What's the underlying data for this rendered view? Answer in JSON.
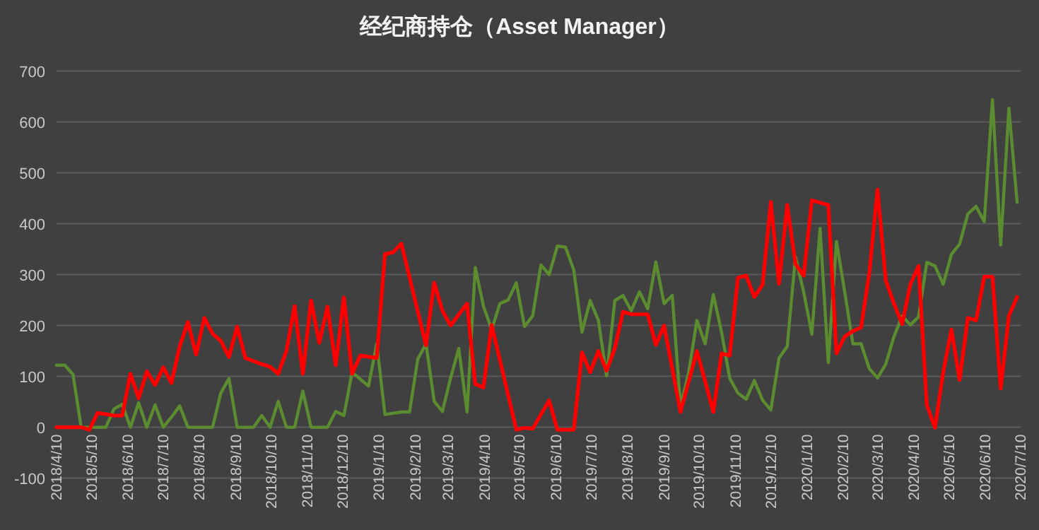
{
  "chart_data": {
    "type": "line",
    "title": "经纪商持仓（Asset Manager）",
    "xlim": [
      "2018-04-10",
      "2020-07-10"
    ],
    "ylim": [
      -100,
      700
    ],
    "yticks": [
      -100,
      0,
      100,
      200,
      300,
      400,
      500,
      600,
      700
    ],
    "xticks": [
      {
        "value": "2018-04-10",
        "label": "2018/4/10"
      },
      {
        "value": "2018-05-10",
        "label": "2018/5/10"
      },
      {
        "value": "2018-06-10",
        "label": "2018/6/10"
      },
      {
        "value": "2018-07-10",
        "label": "2018/7/10"
      },
      {
        "value": "2018-08-10",
        "label": "2018/8/10"
      },
      {
        "value": "2018-09-10",
        "label": "2018/9/10"
      },
      {
        "value": "2018-10-10",
        "label": "2018/10/10"
      },
      {
        "value": "2018-11-10",
        "label": "2018/11/10"
      },
      {
        "value": "2018-12-10",
        "label": "2018/12/10"
      },
      {
        "value": "2019-01-10",
        "label": "2019/1/10"
      },
      {
        "value": "2019-02-10",
        "label": "2019/2/10"
      },
      {
        "value": "2019-03-10",
        "label": "2019/3/10"
      },
      {
        "value": "2019-04-10",
        "label": "2019/4/10"
      },
      {
        "value": "2019-05-10",
        "label": "2019/5/10"
      },
      {
        "value": "2019-06-10",
        "label": "2019/6/10"
      },
      {
        "value": "2019-07-10",
        "label": "2019/7/10"
      },
      {
        "value": "2019-08-10",
        "label": "2019/8/10"
      },
      {
        "value": "2019-09-10",
        "label": "2019/9/10"
      },
      {
        "value": "2019-10-10",
        "label": "2019/10/10"
      },
      {
        "value": "2019-11-10",
        "label": "2019/11/10"
      },
      {
        "value": "2019-12-10",
        "label": "2019/12/10"
      },
      {
        "value": "2020-01-10",
        "label": "2020/1/10"
      },
      {
        "value": "2020-02-10",
        "label": "2020/2/10"
      },
      {
        "value": "2020-03-10",
        "label": "2020/3/10"
      },
      {
        "value": "2020-04-10",
        "label": "2020/4/10"
      },
      {
        "value": "2020-05-10",
        "label": "2020/5/10"
      },
      {
        "value": "2020-06-10",
        "label": "2020/6/10"
      },
      {
        "value": "2020-07-10",
        "label": "2020/7/10"
      }
    ],
    "grid": "y",
    "series": [
      {
        "color": "#5b8c2f",
        "x": [
          "2018-04-10",
          "2018-04-17",
          "2018-04-24",
          "2018-05-01",
          "2018-05-22",
          "2018-05-29",
          "2018-06-05",
          "2018-06-12",
          "2018-06-19",
          "2018-06-26",
          "2018-07-03",
          "2018-07-10",
          "2018-07-17",
          "2018-07-24",
          "2018-07-31",
          "2018-08-21",
          "2018-08-28",
          "2018-09-04",
          "2018-09-11",
          "2018-09-25",
          "2018-10-02",
          "2018-10-09",
          "2018-10-16",
          "2018-10-23",
          "2018-10-30",
          "2018-11-06",
          "2018-11-13",
          "2018-11-27",
          "2018-12-04",
          "2018-12-11",
          "2018-12-18",
          "2019-01-01",
          "2019-01-08",
          "2019-01-15",
          "2019-01-29",
          "2019-02-05",
          "2019-02-12",
          "2019-02-19",
          "2019-02-26",
          "2019-03-05",
          "2019-03-12",
          "2019-03-19",
          "2019-03-26",
          "2019-04-02",
          "2019-04-09",
          "2019-04-16",
          "2019-04-23",
          "2019-04-30",
          "2019-05-07",
          "2019-05-14",
          "2019-05-21",
          "2019-05-28",
          "2019-06-04",
          "2019-06-11",
          "2019-06-18",
          "2019-06-25",
          "2019-07-02",
          "2019-07-09",
          "2019-07-16",
          "2019-07-23",
          "2019-07-30",
          "2019-08-06",
          "2019-08-13",
          "2019-08-20",
          "2019-08-27",
          "2019-09-03",
          "2019-09-10",
          "2019-09-17",
          "2019-09-24",
          "2019-10-01",
          "2019-10-08",
          "2019-10-15",
          "2019-10-22",
          "2019-10-29",
          "2019-11-05",
          "2019-11-12",
          "2019-11-19",
          "2019-11-26",
          "2019-12-03",
          "2019-12-10",
          "2019-12-17",
          "2019-12-24",
          "2019-12-31",
          "2020-01-07",
          "2020-01-14",
          "2020-01-21",
          "2020-01-28",
          "2020-02-04",
          "2020-02-11",
          "2020-02-18",
          "2020-02-25",
          "2020-03-03",
          "2020-03-10",
          "2020-03-17",
          "2020-03-24",
          "2020-03-31",
          "2020-04-07",
          "2020-04-14",
          "2020-04-21",
          "2020-04-28",
          "2020-05-05",
          "2020-05-12",
          "2020-05-19",
          "2020-05-26",
          "2020-06-02",
          "2020-06-09",
          "2020-06-16",
          "2020-06-23",
          "2020-06-30",
          "2020-07-07"
        ],
        "values": [
          122,
          122,
          104,
          0,
          0,
          36,
          45,
          0,
          48,
          0,
          44,
          0,
          20,
          42,
          0,
          0,
          67,
          96,
          0,
          0,
          23,
          0,
          51,
          0,
          0,
          71,
          0,
          0,
          31,
          23,
          108,
          81,
          164,
          25,
          30,
          30,
          134,
          164,
          51,
          31,
          97,
          155,
          30,
          314,
          238,
          192,
          243,
          250,
          284,
          198,
          219,
          319,
          300,
          356,
          354,
          309,
          187,
          249,
          210,
          101,
          249,
          259,
          229,
          266,
          233,
          325,
          243,
          259,
          41,
          108,
          210,
          164,
          261,
          187,
          96,
          67,
          55,
          92,
          53,
          34,
          136,
          159,
          335,
          266,
          183,
          391,
          127,
          365,
          266,
          164,
          164,
          115,
          97,
          124,
          178,
          219,
          201,
          217,
          324,
          317,
          281,
          340,
          360,
          419,
          434,
          404,
          644,
          358,
          627,
          442
        ]
      },
      {
        "color": "#ff0000",
        "x": [
          "2018-04-10",
          "2018-05-01",
          "2018-05-08",
          "2018-05-15",
          "2018-05-29",
          "2018-06-05",
          "2018-06-12",
          "2018-06-19",
          "2018-06-26",
          "2018-07-03",
          "2018-07-10",
          "2018-07-17",
          "2018-07-24",
          "2018-07-31",
          "2018-08-07",
          "2018-08-14",
          "2018-08-21",
          "2018-08-28",
          "2018-09-04",
          "2018-09-11",
          "2018-09-18",
          "2018-10-02",
          "2018-10-09",
          "2018-10-16",
          "2018-10-23",
          "2018-10-30",
          "2018-11-06",
          "2018-11-13",
          "2018-11-20",
          "2018-11-27",
          "2018-12-04",
          "2018-12-11",
          "2018-12-18",
          "2018-12-25",
          "2019-01-08",
          "2019-01-15",
          "2019-01-22",
          "2019-01-29",
          "2019-02-19",
          "2019-02-26",
          "2019-03-05",
          "2019-03-12",
          "2019-03-26",
          "2019-04-02",
          "2019-04-09",
          "2019-04-16",
          "2019-05-07",
          "2019-05-14",
          "2019-05-21",
          "2019-06-04",
          "2019-06-11",
          "2019-06-25",
          "2019-07-02",
          "2019-07-09",
          "2019-07-16",
          "2019-07-23",
          "2019-07-30",
          "2019-08-06",
          "2019-08-13",
          "2019-08-27",
          "2019-09-03",
          "2019-09-10",
          "2019-09-24",
          "2019-10-08",
          "2019-10-22",
          "2019-10-29",
          "2019-11-05",
          "2019-11-12",
          "2019-11-19",
          "2019-11-26",
          "2019-12-03",
          "2019-12-10",
          "2019-12-17",
          "2019-12-24",
          "2019-12-31",
          "2020-01-07",
          "2020-01-14",
          "2020-01-28",
          "2020-02-04",
          "2020-02-11",
          "2020-02-18",
          "2020-02-25",
          "2020-03-03",
          "2020-03-10",
          "2020-03-17",
          "2020-03-24",
          "2020-03-31",
          "2020-04-07",
          "2020-04-14",
          "2020-04-21",
          "2020-04-28",
          "2020-05-05",
          "2020-05-12",
          "2020-05-19",
          "2020-05-26",
          "2020-06-02",
          "2020-06-09",
          "2020-06-16",
          "2020-06-23",
          "2020-06-30",
          "2020-07-07"
        ],
        "values": [
          0,
          0,
          -5,
          28,
          23,
          23,
          105,
          57,
          110,
          83,
          118,
          87,
          159,
          207,
          143,
          215,
          184,
          170,
          138,
          198,
          136,
          124,
          119,
          105,
          150,
          238,
          105,
          249,
          166,
          237,
          122,
          255,
          105,
          141,
          136,
          340,
          344,
          361,
          161,
          284,
          229,
          200,
          243,
          85,
          78,
          201,
          -5,
          -1,
          -3,
          53,
          -5,
          -5,
          147,
          108,
          150,
          111,
          155,
          227,
          222,
          222,
          162,
          200,
          30,
          150,
          30,
          145,
          141,
          294,
          298,
          256,
          280,
          443,
          282,
          437,
          321,
          298,
          446,
          437,
          145,
          178,
          189,
          196,
          303,
          467,
          289,
          243,
          203,
          281,
          317,
          44,
          -1,
          108,
          192,
          93,
          215,
          210,
          296,
          296,
          76,
          219,
          256
        ]
      }
    ]
  }
}
